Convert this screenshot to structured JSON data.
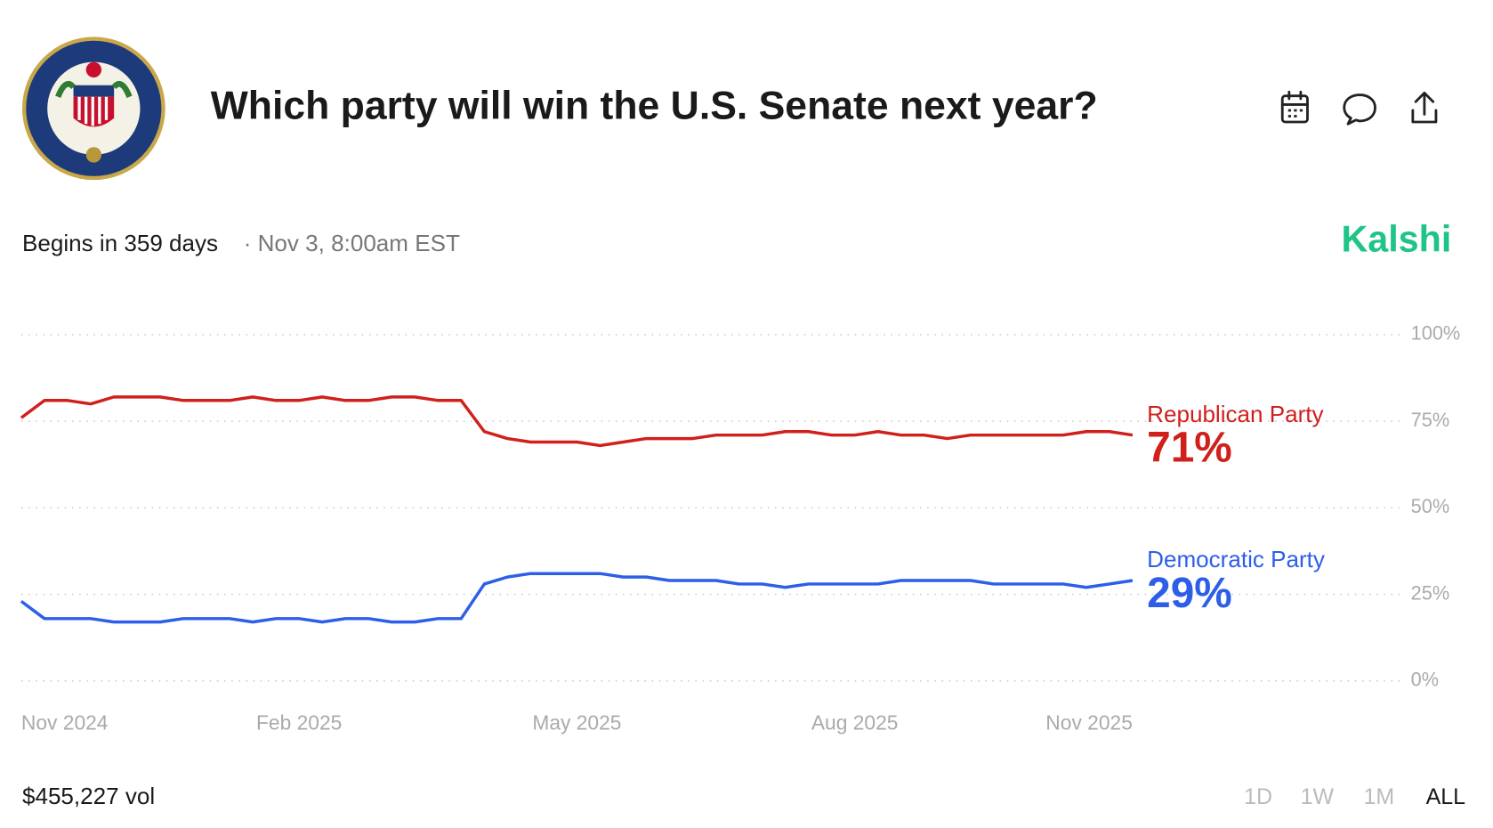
{
  "header": {
    "title": "Which party will win the U.S. Senate next year?",
    "begins": "Begins in 359 days",
    "date": "· Nov 3, 8:00am EST",
    "brand": "Kalshi"
  },
  "footer": {
    "volume": "$455,227 vol",
    "ranges": [
      "1D",
      "1W",
      "1M",
      "ALL"
    ]
  },
  "chart_data": {
    "type": "line",
    "categories": [
      "Nov 2024",
      null,
      null,
      null,
      null,
      null,
      null,
      null,
      null,
      null,
      null,
      null,
      "Feb 2025",
      null,
      null,
      null,
      null,
      null,
      null,
      null,
      null,
      null,
      null,
      null,
      "May 2025",
      null,
      null,
      null,
      null,
      null,
      null,
      null,
      null,
      null,
      null,
      null,
      "Aug 2025",
      null,
      null,
      null,
      null,
      null,
      null,
      null,
      null,
      null,
      null,
      null,
      "Nov 2025"
    ],
    "series": [
      {
        "name": "Republican Party",
        "color": "#d0201c",
        "values": [
          76,
          81,
          81,
          80,
          82,
          82,
          82,
          81,
          81,
          81,
          82,
          81,
          81,
          82,
          81,
          81,
          82,
          82,
          81,
          81,
          72,
          70,
          69,
          69,
          69,
          68,
          69,
          70,
          70,
          70,
          71,
          71,
          71,
          72,
          72,
          71,
          71,
          72,
          71,
          71,
          70,
          71,
          71,
          71,
          71,
          71,
          72,
          72,
          71
        ],
        "value_labels": [
          null,
          null,
          null,
          null,
          null,
          null,
          null,
          null,
          null,
          null,
          null,
          null,
          null,
          null,
          null,
          null,
          null,
          null,
          null,
          null,
          null,
          null,
          null,
          null,
          null,
          null,
          null,
          null,
          null,
          null,
          null,
          null,
          null,
          null,
          null,
          null,
          null,
          null,
          null,
          null,
          null,
          null,
          null,
          null,
          null,
          null,
          null,
          null,
          "71%"
        ]
      },
      {
        "name": "Democratic Party",
        "color": "#2d5ee8",
        "values": [
          23,
          18,
          18,
          18,
          17,
          17,
          17,
          18,
          18,
          18,
          17,
          18,
          18,
          17,
          18,
          18,
          17,
          17,
          18,
          18,
          28,
          30,
          31,
          31,
          31,
          31,
          30,
          30,
          29,
          29,
          29,
          28,
          28,
          27,
          28,
          28,
          28,
          28,
          29,
          29,
          29,
          29,
          28,
          28,
          28,
          28,
          27,
          28,
          29
        ],
        "value_labels": [
          null,
          null,
          null,
          null,
          null,
          null,
          null,
          null,
          null,
          null,
          null,
          null,
          null,
          null,
          null,
          null,
          null,
          null,
          null,
          null,
          null,
          null,
          null,
          null,
          null,
          null,
          null,
          null,
          null,
          null,
          null,
          null,
          null,
          null,
          null,
          null,
          null,
          null,
          null,
          null,
          null,
          null,
          null,
          null,
          null,
          null,
          null,
          null,
          "29%"
        ]
      }
    ],
    "ylim": [
      0,
      100
    ],
    "yticks": [
      {
        "value": 0,
        "label": "0%"
      },
      {
        "value": 25,
        "label": "25%"
      },
      {
        "value": 50,
        "label": "50%"
      },
      {
        "value": 75,
        "label": "75%"
      },
      {
        "value": 100,
        "label": "100%"
      }
    ],
    "grid": true
  }
}
